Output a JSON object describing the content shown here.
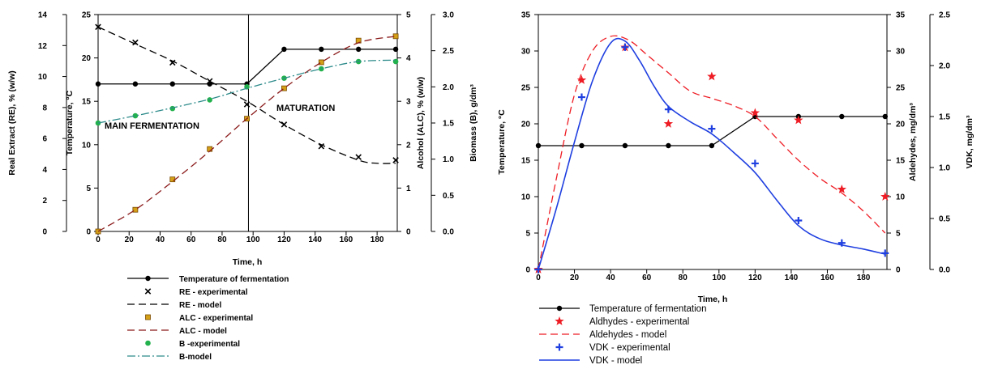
{
  "chart_data": [
    {
      "type": "line",
      "xlabel": "Time, h",
      "x_ticks": [
        0,
        20,
        40,
        60,
        80,
        100,
        120,
        140,
        160,
        180
      ],
      "xlim": [
        0,
        193
      ],
      "axes": {
        "re": {
          "label": "Real Extract (RE), % (w/w)",
          "lim": [
            0,
            14
          ],
          "ticks": [
            0,
            2,
            4,
            6,
            8,
            10,
            12,
            14
          ]
        },
        "temp": {
          "label": "Temperature, °C",
          "lim": [
            0,
            25
          ],
          "ticks": [
            0,
            5,
            10,
            15,
            20,
            25
          ]
        },
        "alc": {
          "label": "Alcohol (ALC), % (w/w)",
          "lim": [
            0,
            5
          ],
          "ticks": [
            0,
            1,
            2,
            3,
            4,
            5
          ]
        },
        "bio": {
          "label": "Biomass (B), g/dm³",
          "lim": [
            0,
            3
          ],
          "ticks": [
            "0.0",
            "0.5",
            "1.0",
            "1.5",
            "2.0",
            "2.5",
            "3.0"
          ]
        }
      },
      "annotations": [
        "MAIN FERMENTATION",
        "MATURATION"
      ],
      "divider_x": 97,
      "series": [
        {
          "name": "Temperature of fermentation",
          "axis": "temp",
          "style": "line-dot",
          "color": "#000000",
          "x": [
            0,
            24,
            48,
            72,
            96,
            120,
            144,
            168,
            192
          ],
          "y": [
            17,
            17,
            17,
            17,
            17,
            21,
            21,
            21,
            21
          ]
        },
        {
          "name": "RE - experimental",
          "axis": "re",
          "style": "x-marker",
          "color": "#000000",
          "x": [
            0,
            24,
            48,
            72,
            96,
            120,
            144,
            168,
            192
          ],
          "y": [
            13.2,
            12.2,
            10.9,
            9.7,
            8.2,
            6.9,
            5.5,
            4.8,
            4.6
          ]
        },
        {
          "name": "RE - model",
          "axis": "re",
          "style": "dash",
          "color": "#000000",
          "x": [
            0,
            24,
            48,
            72,
            96,
            120,
            144,
            168,
            180,
            192
          ],
          "y": [
            13.2,
            12.1,
            11.0,
            9.7,
            8.4,
            6.9,
            5.6,
            4.6,
            4.4,
            4.4
          ]
        },
        {
          "name": "ALC - experimental",
          "axis": "alc",
          "style": "square-marker",
          "color": "#d4a017",
          "x": [
            0,
            24,
            48,
            72,
            96,
            120,
            144,
            168,
            192
          ],
          "y": [
            0,
            0.5,
            1.2,
            1.9,
            2.6,
            3.3,
            3.9,
            4.4,
            4.5
          ]
        },
        {
          "name": "ALC - model",
          "axis": "alc",
          "style": "dash",
          "color": "#8b1a1a",
          "x": [
            0,
            24,
            48,
            72,
            96,
            120,
            144,
            168,
            192
          ],
          "y": [
            0,
            0.5,
            1.15,
            1.85,
            2.6,
            3.3,
            3.9,
            4.35,
            4.5
          ]
        },
        {
          "name": "B -experimental",
          "axis": "bio",
          "style": "circle-marker",
          "color": "#22b14c",
          "x": [
            0,
            24,
            48,
            72,
            96,
            120,
            144,
            168,
            192
          ],
          "y": [
            1.5,
            1.6,
            1.7,
            1.82,
            2.0,
            2.12,
            2.25,
            2.35,
            2.35
          ]
        },
        {
          "name": "B-model",
          "axis": "bio",
          "style": "dashdot",
          "color": "#2e8b8b",
          "x": [
            0,
            24,
            48,
            72,
            96,
            120,
            144,
            168,
            192
          ],
          "y": [
            1.5,
            1.6,
            1.71,
            1.83,
            1.98,
            2.12,
            2.25,
            2.35,
            2.37
          ]
        }
      ]
    },
    {
      "type": "line",
      "xlabel": "Time, h",
      "x_ticks": [
        0,
        20,
        40,
        60,
        80,
        100,
        120,
        140,
        160,
        180
      ],
      "xlim": [
        0,
        193
      ],
      "axes": {
        "temp": {
          "label": "Temperature, °C",
          "lim": [
            0,
            35
          ],
          "ticks": [
            0,
            5,
            10,
            15,
            20,
            25,
            30,
            35
          ]
        },
        "ald": {
          "label": "Aldehydes, mg/dm³",
          "lim": [
            0,
            35
          ],
          "ticks": [
            0,
            5,
            10,
            15,
            20,
            25,
            30,
            35
          ]
        },
        "vdk": {
          "label": "VDK, mg/dm³",
          "lim": [
            0,
            2.5
          ],
          "ticks": [
            "0.0",
            "0.5",
            "1.0",
            "1.5",
            "2.0",
            "2.5"
          ]
        }
      },
      "series": [
        {
          "name": "Temperature of fermentation",
          "axis": "temp",
          "style": "line-dot",
          "color": "#000000",
          "x": [
            0,
            24,
            48,
            72,
            96,
            120,
            144,
            168,
            192
          ],
          "y": [
            17,
            17,
            17,
            17,
            17,
            21,
            21,
            21,
            21
          ]
        },
        {
          "name": "Aldhydes - experimental",
          "axis": "ald",
          "style": "star-marker",
          "color": "#ee1c24",
          "x": [
            0,
            24,
            48,
            72,
            96,
            120,
            144,
            168,
            192
          ],
          "y": [
            0,
            26,
            30.5,
            20,
            26.5,
            21.5,
            20.5,
            11,
            10
          ]
        },
        {
          "name": "Aldehydes - model",
          "axis": "ald",
          "style": "dash",
          "color": "#ee1c24",
          "x": [
            0,
            10,
            20,
            30,
            40,
            50,
            60,
            72,
            84,
            96,
            108,
            120,
            132,
            144,
            156,
            168,
            180,
            192
          ],
          "y": [
            0,
            12.5,
            24,
            30,
            32,
            31.5,
            29.5,
            27,
            24.5,
            23.5,
            22.5,
            21,
            18,
            15,
            12.5,
            10.5,
            8,
            5
          ]
        },
        {
          "name": "VDK - experimental",
          "axis": "vdk",
          "style": "plus-marker",
          "color": "#1f3fe0",
          "x": [
            0,
            24,
            48,
            72,
            96,
            120,
            144,
            168,
            192
          ],
          "y": [
            0,
            1.69,
            2.18,
            1.57,
            1.38,
            1.04,
            0.48,
            0.26,
            0.16
          ]
        },
        {
          "name": "VDK - model",
          "axis": "vdk",
          "style": "solid",
          "color": "#1f3fe0",
          "x": [
            0,
            10,
            20,
            30,
            40,
            48,
            56,
            64,
            72,
            84,
            96,
            108,
            120,
            132,
            144,
            156,
            168,
            180,
            192
          ],
          "y": [
            0,
            0.6,
            1.25,
            1.85,
            2.22,
            2.24,
            2.05,
            1.8,
            1.6,
            1.45,
            1.33,
            1.15,
            0.95,
            0.68,
            0.43,
            0.3,
            0.24,
            0.2,
            0.15
          ]
        }
      ]
    }
  ]
}
